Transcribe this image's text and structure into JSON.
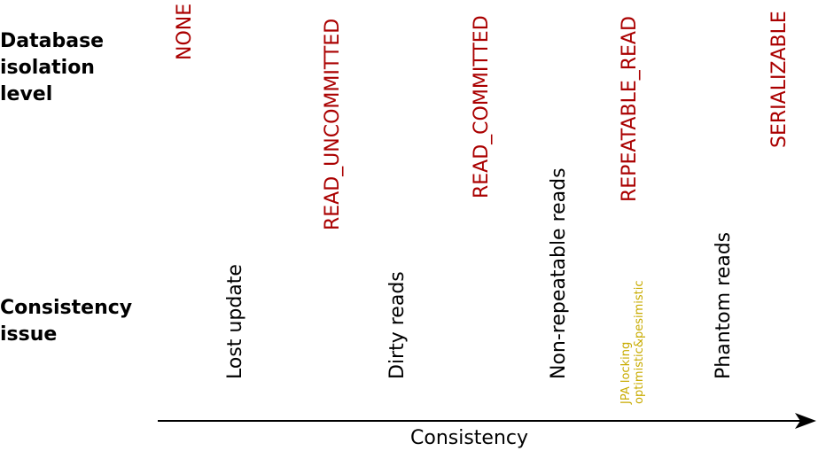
{
  "rows": {
    "isolation_label": "Database\nisolation\nlevel",
    "issue_label": "Consistency\nissue"
  },
  "isolation_levels": [
    "NONE",
    "READ_UNCOMMITTED",
    "READ_COMMITTED",
    "REPEATABLE_READ",
    "SERIALIZABLE"
  ],
  "consistency_issues": [
    "Lost update",
    "Dirty reads",
    "Non-repeatable reads",
    "Phantom reads"
  ],
  "note": "JPA locking\noptimistic&pesimistic",
  "axis": {
    "label": "Consistency"
  },
  "colors": {
    "isolation_level": "#aa0000",
    "issue": "#000000",
    "note": "#c8ab00",
    "axis": "#000000"
  }
}
